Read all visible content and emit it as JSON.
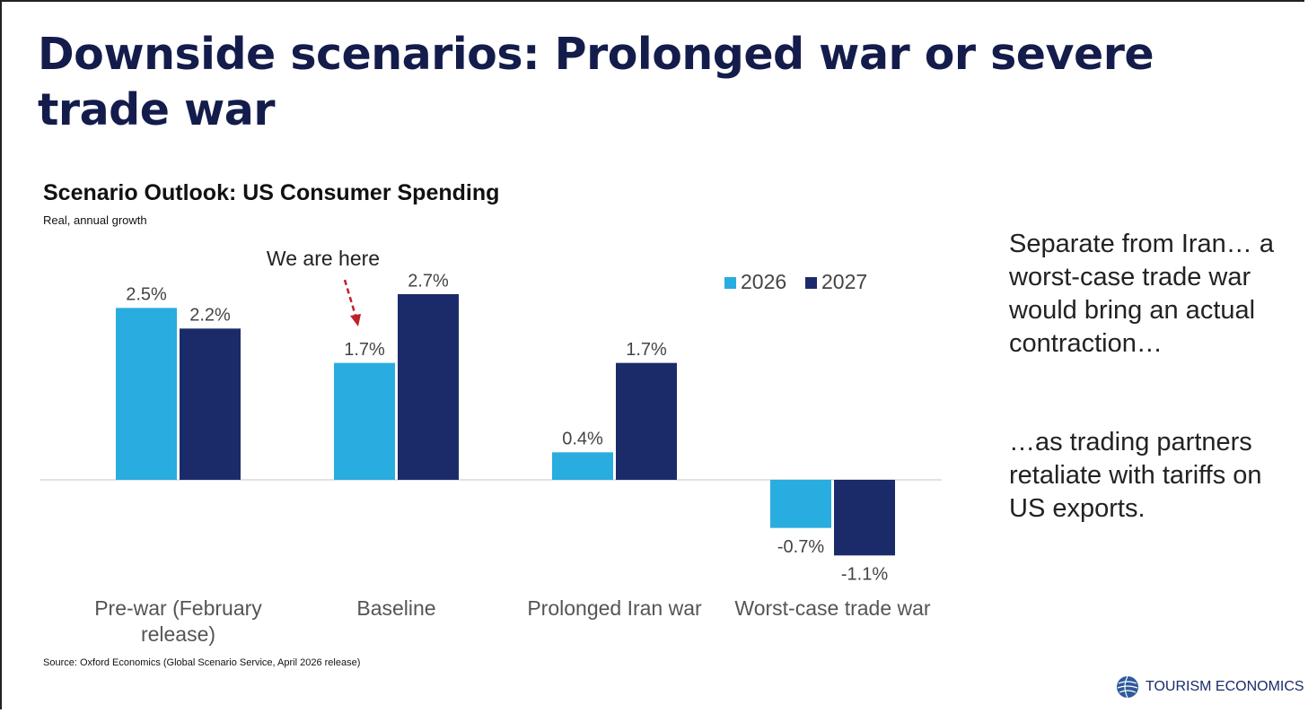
{
  "slide": {
    "title": "Downside scenarios: Prolonged war or severe trade war",
    "side_text": [
      "Separate from Iran… a worst-case trade war would bring an actual contraction…",
      "…as trading partners retaliate with tariffs on US exports."
    ],
    "logo": "TOURISM ECONOMICS"
  },
  "chart_data": {
    "type": "bar",
    "title": "Scenario Outlook: US Consumer Spending",
    "subtitle": "Real, annual growth",
    "annotation": "We are here",
    "source": "Source: Oxford Economics (Global Scenario Service, April 2026 release)",
    "categories": [
      "Pre-war (February release)",
      "Baseline",
      "Prolonged Iran war",
      "Worst-case trade war"
    ],
    "series": [
      {
        "name": "2026",
        "color": "#29acdf",
        "values": [
          2.5,
          1.7,
          0.4,
          -0.7
        ],
        "value_labels": [
          "2.5%",
          "1.7%",
          "0.4%",
          "-0.7%"
        ]
      },
      {
        "name": "2027",
        "color": "#1b2b6a",
        "values": [
          2.2,
          2.7,
          1.7,
          -1.1
        ],
        "value_labels": [
          "2.2%",
          "2.7%",
          "1.7%",
          "-1.1%"
        ]
      }
    ],
    "ylim": [
      -1.5,
      3
    ],
    "legend": "top-right"
  }
}
